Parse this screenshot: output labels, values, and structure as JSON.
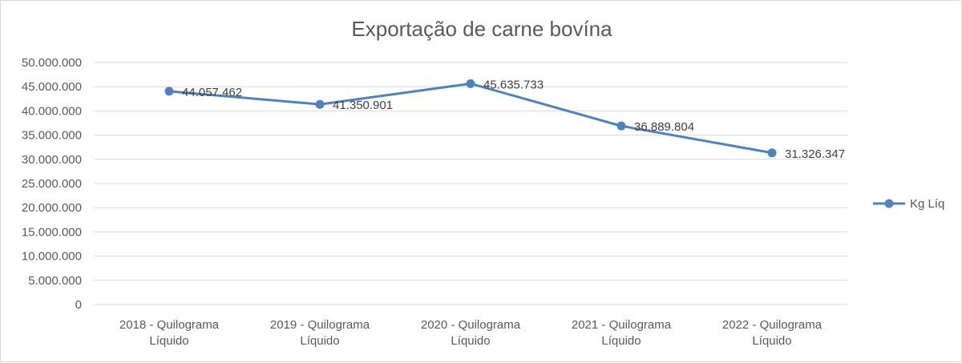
{
  "chart_data": {
    "type": "line",
    "title": "Exportação de carne bovína",
    "categories": [
      [
        "2018 - Quilograma",
        "Líquido"
      ],
      [
        "2019 - Quilograma",
        "Líquido"
      ],
      [
        "2020 - Quilograma",
        "Líquido"
      ],
      [
        "2021 - Quilograma",
        "Líquido"
      ],
      [
        "2022 - Quilograma",
        "Líquido"
      ]
    ],
    "series": [
      {
        "name": "Kg Líq",
        "values": [
          44057462,
          41350901,
          45635733,
          36889804,
          31326347
        ],
        "labels": [
          "44.057.462",
          "41.350.901",
          "45.635.733",
          "36.889.804",
          "31.326.347"
        ],
        "color": "#4f81bd"
      }
    ],
    "ylim": [
      0,
      50000000
    ],
    "yticks": [
      0,
      5000000,
      10000000,
      15000000,
      20000000,
      25000000,
      30000000,
      35000000,
      40000000,
      45000000,
      50000000
    ],
    "ytick_labels": [
      "0",
      "5.000.000",
      "10.000.000",
      "15.000.000",
      "20.000.000",
      "25.000.000",
      "30.000.000",
      "35.000.000",
      "40.000.000",
      "45.000.000",
      "50.000.000"
    ],
    "grid": true,
    "legend_position": "right"
  }
}
